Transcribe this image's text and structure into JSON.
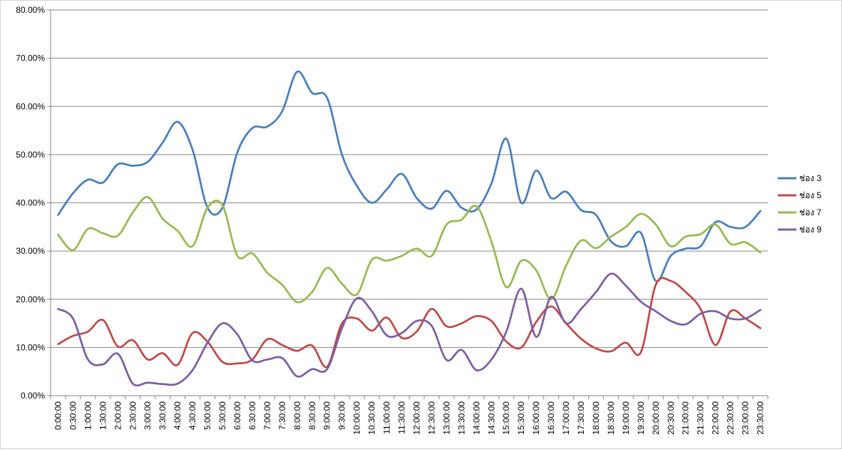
{
  "chart_data": {
    "type": "line",
    "title": "",
    "xlabel": "",
    "ylabel": "",
    "ylim": [
      0,
      0.8
    ],
    "y_ticks": [
      "0.00%",
      "10.00%",
      "20.00%",
      "30.00%",
      "40.00%",
      "50.00%",
      "60.00%",
      "70.00%",
      "80.00%"
    ],
    "grid": true,
    "legend_position": "right",
    "smooth": true,
    "categories": [
      "0:00:00",
      "0:30:00",
      "1:00:00",
      "1:30:00",
      "2:00:00",
      "2:30:00",
      "3:00:00",
      "3:30:00",
      "4:00:00",
      "4:30:00",
      "5:00:00",
      "5:30:00",
      "6:00:00",
      "6:30:00",
      "7:00:00",
      "7:30:00",
      "8:00:00",
      "8:30:00",
      "9:00:00",
      "9:30:00",
      "10:00:00",
      "10:30:00",
      "11:00:00",
      "11:30:00",
      "12:00:00",
      "12:30:00",
      "13:00:00",
      "13:30:00",
      "14:00:00",
      "14:30:00",
      "15:00:00",
      "15:30:00",
      "16:00:00",
      "16:30:00",
      "17:00:00",
      "17:30:00",
      "18:00:00",
      "18:30:00",
      "19:00:00",
      "19:30:00",
      "20:00:00",
      "20:30:00",
      "21:00:00",
      "21:30:00",
      "22:00:00",
      "22:30:00",
      "23:00:00",
      "23:30:00"
    ],
    "series": [
      {
        "name": "ช่อง 3",
        "color": "#4a7ebb",
        "values": [
          0.375,
          0.42,
          0.448,
          0.442,
          0.48,
          0.477,
          0.485,
          0.525,
          0.568,
          0.51,
          0.39,
          0.39,
          0.505,
          0.555,
          0.558,
          0.59,
          0.672,
          0.628,
          0.618,
          0.5,
          0.435,
          0.4,
          0.428,
          0.46,
          0.41,
          0.388,
          0.425,
          0.39,
          0.386,
          0.44,
          0.533,
          0.4,
          0.467,
          0.41,
          0.423,
          0.385,
          0.375,
          0.32,
          0.31,
          0.338,
          0.238,
          0.29,
          0.305,
          0.31,
          0.36,
          0.35,
          0.35,
          0.383
        ]
      },
      {
        "name": "ช่อง 5",
        "color": "#be4b48",
        "values": [
          0.107,
          0.124,
          0.133,
          0.157,
          0.102,
          0.115,
          0.075,
          0.088,
          0.064,
          0.13,
          0.112,
          0.07,
          0.067,
          0.075,
          0.117,
          0.105,
          0.093,
          0.104,
          0.06,
          0.15,
          0.16,
          0.135,
          0.162,
          0.12,
          0.133,
          0.18,
          0.144,
          0.15,
          0.165,
          0.155,
          0.112,
          0.1,
          0.153,
          0.185,
          0.15,
          0.118,
          0.098,
          0.092,
          0.11,
          0.09,
          0.23,
          0.238,
          0.215,
          0.18,
          0.105,
          0.175,
          0.16,
          0.14
        ]
      },
      {
        "name": "ช่อง 7",
        "color": "#98b954",
        "values": [
          0.334,
          0.302,
          0.346,
          0.337,
          0.332,
          0.38,
          0.412,
          0.367,
          0.342,
          0.31,
          0.39,
          0.395,
          0.29,
          0.295,
          0.255,
          0.23,
          0.194,
          0.215,
          0.265,
          0.232,
          0.21,
          0.282,
          0.28,
          0.29,
          0.305,
          0.29,
          0.355,
          0.365,
          0.393,
          0.32,
          0.225,
          0.28,
          0.26,
          0.2,
          0.27,
          0.322,
          0.306,
          0.33,
          0.35,
          0.377,
          0.355,
          0.31,
          0.33,
          0.335,
          0.355,
          0.315,
          0.318,
          0.297
        ]
      },
      {
        "name": "ช่อง 9",
        "color": "#7d5fa0",
        "values": [
          0.18,
          0.16,
          0.075,
          0.065,
          0.087,
          0.025,
          0.027,
          0.024,
          0.025,
          0.053,
          0.11,
          0.15,
          0.127,
          0.073,
          0.075,
          0.078,
          0.04,
          0.055,
          0.055,
          0.14,
          0.202,
          0.175,
          0.125,
          0.13,
          0.155,
          0.145,
          0.074,
          0.095,
          0.053,
          0.075,
          0.133,
          0.222,
          0.122,
          0.205,
          0.15,
          0.18,
          0.215,
          0.253,
          0.228,
          0.195,
          0.175,
          0.155,
          0.148,
          0.17,
          0.175,
          0.16,
          0.16,
          0.178
        ]
      }
    ]
  }
}
